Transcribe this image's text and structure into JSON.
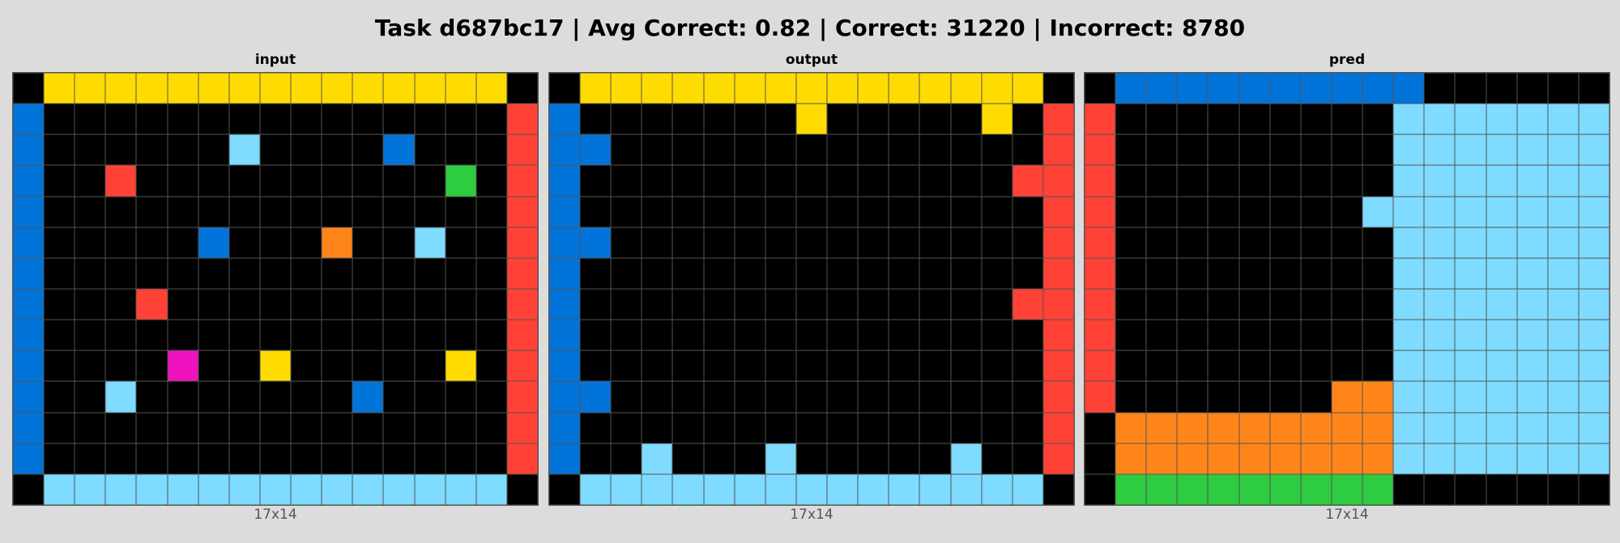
{
  "title": "Task d687bc17 | Avg Correct: 0.82 | Correct: 31220 | Incorrect: 8780",
  "palette": {
    "0": "#000000",
    "1": "#0074D9",
    "2": "#FF4136",
    "3": "#2ECC40",
    "4": "#FFDC00",
    "6": "#F012BE",
    "7": "#FF851B",
    "8": "#7FDBFF"
  },
  "chart_data": [
    {
      "type": "heatmap",
      "name": "input",
      "size_label": "17x14",
      "rows": [
        [
          0,
          4,
          4,
          4,
          4,
          4,
          4,
          4,
          4,
          4,
          4,
          4,
          4,
          4,
          4,
          4,
          0
        ],
        [
          1,
          0,
          0,
          0,
          0,
          0,
          0,
          0,
          0,
          0,
          0,
          0,
          0,
          0,
          0,
          0,
          2
        ],
        [
          1,
          0,
          0,
          0,
          0,
          0,
          0,
          8,
          0,
          0,
          0,
          0,
          1,
          0,
          0,
          0,
          2
        ],
        [
          1,
          0,
          0,
          2,
          0,
          0,
          0,
          0,
          0,
          0,
          0,
          0,
          0,
          0,
          3,
          0,
          2
        ],
        [
          1,
          0,
          0,
          0,
          0,
          0,
          0,
          0,
          0,
          0,
          0,
          0,
          0,
          0,
          0,
          0,
          2
        ],
        [
          1,
          0,
          0,
          0,
          0,
          0,
          1,
          0,
          0,
          0,
          7,
          0,
          0,
          8,
          0,
          0,
          2
        ],
        [
          1,
          0,
          0,
          0,
          0,
          0,
          0,
          0,
          0,
          0,
          0,
          0,
          0,
          0,
          0,
          0,
          2
        ],
        [
          1,
          0,
          0,
          0,
          2,
          0,
          0,
          0,
          0,
          0,
          0,
          0,
          0,
          0,
          0,
          0,
          2
        ],
        [
          1,
          0,
          0,
          0,
          0,
          0,
          0,
          0,
          0,
          0,
          0,
          0,
          0,
          0,
          0,
          0,
          2
        ],
        [
          1,
          0,
          0,
          0,
          0,
          6,
          0,
          0,
          4,
          0,
          0,
          0,
          0,
          0,
          4,
          0,
          2
        ],
        [
          1,
          0,
          0,
          8,
          0,
          0,
          0,
          0,
          0,
          0,
          0,
          1,
          0,
          0,
          0,
          0,
          2
        ],
        [
          1,
          0,
          0,
          0,
          0,
          0,
          0,
          0,
          0,
          0,
          0,
          0,
          0,
          0,
          0,
          0,
          2
        ],
        [
          1,
          0,
          0,
          0,
          0,
          0,
          0,
          0,
          0,
          0,
          0,
          0,
          0,
          0,
          0,
          0,
          2
        ],
        [
          0,
          8,
          8,
          8,
          8,
          8,
          8,
          8,
          8,
          8,
          8,
          8,
          8,
          8,
          8,
          8,
          0
        ]
      ]
    },
    {
      "type": "heatmap",
      "name": "output",
      "size_label": "17x14",
      "rows": [
        [
          0,
          4,
          4,
          4,
          4,
          4,
          4,
          4,
          4,
          4,
          4,
          4,
          4,
          4,
          4,
          4,
          0
        ],
        [
          1,
          0,
          0,
          0,
          0,
          0,
          0,
          0,
          4,
          0,
          0,
          0,
          0,
          0,
          4,
          0,
          2
        ],
        [
          1,
          1,
          0,
          0,
          0,
          0,
          0,
          0,
          0,
          0,
          0,
          0,
          0,
          0,
          0,
          0,
          2
        ],
        [
          1,
          0,
          0,
          0,
          0,
          0,
          0,
          0,
          0,
          0,
          0,
          0,
          0,
          0,
          0,
          2,
          2
        ],
        [
          1,
          0,
          0,
          0,
          0,
          0,
          0,
          0,
          0,
          0,
          0,
          0,
          0,
          0,
          0,
          0,
          2
        ],
        [
          1,
          1,
          0,
          0,
          0,
          0,
          0,
          0,
          0,
          0,
          0,
          0,
          0,
          0,
          0,
          0,
          2
        ],
        [
          1,
          0,
          0,
          0,
          0,
          0,
          0,
          0,
          0,
          0,
          0,
          0,
          0,
          0,
          0,
          0,
          2
        ],
        [
          1,
          0,
          0,
          0,
          0,
          0,
          0,
          0,
          0,
          0,
          0,
          0,
          0,
          0,
          0,
          2,
          2
        ],
        [
          1,
          0,
          0,
          0,
          0,
          0,
          0,
          0,
          0,
          0,
          0,
          0,
          0,
          0,
          0,
          0,
          2
        ],
        [
          1,
          0,
          0,
          0,
          0,
          0,
          0,
          0,
          0,
          0,
          0,
          0,
          0,
          0,
          0,
          0,
          2
        ],
        [
          1,
          1,
          0,
          0,
          0,
          0,
          0,
          0,
          0,
          0,
          0,
          0,
          0,
          0,
          0,
          0,
          2
        ],
        [
          1,
          0,
          0,
          0,
          0,
          0,
          0,
          0,
          0,
          0,
          0,
          0,
          0,
          0,
          0,
          0,
          2
        ],
        [
          1,
          0,
          0,
          8,
          0,
          0,
          0,
          8,
          0,
          0,
          0,
          0,
          0,
          8,
          0,
          0,
          2
        ],
        [
          0,
          8,
          8,
          8,
          8,
          8,
          8,
          8,
          8,
          8,
          8,
          8,
          8,
          8,
          8,
          8,
          0
        ]
      ]
    },
    {
      "type": "heatmap",
      "name": "pred",
      "size_label": "17x14",
      "rows": [
        [
          0,
          1,
          1,
          1,
          1,
          1,
          1,
          1,
          1,
          1,
          1,
          0,
          0,
          0,
          0,
          0,
          0
        ],
        [
          2,
          0,
          0,
          0,
          0,
          0,
          0,
          0,
          0,
          0,
          8,
          8,
          8,
          8,
          8,
          8,
          8
        ],
        [
          2,
          0,
          0,
          0,
          0,
          0,
          0,
          0,
          0,
          0,
          8,
          8,
          8,
          8,
          8,
          8,
          8
        ],
        [
          2,
          0,
          0,
          0,
          0,
          0,
          0,
          0,
          0,
          0,
          8,
          8,
          8,
          8,
          8,
          8,
          8
        ],
        [
          2,
          0,
          0,
          0,
          0,
          0,
          0,
          0,
          0,
          8,
          8,
          8,
          8,
          8,
          8,
          8,
          8
        ],
        [
          2,
          0,
          0,
          0,
          0,
          0,
          0,
          0,
          0,
          0,
          8,
          8,
          8,
          8,
          8,
          8,
          8
        ],
        [
          2,
          0,
          0,
          0,
          0,
          0,
          0,
          0,
          0,
          0,
          8,
          8,
          8,
          8,
          8,
          8,
          8
        ],
        [
          2,
          0,
          0,
          0,
          0,
          0,
          0,
          0,
          0,
          0,
          8,
          8,
          8,
          8,
          8,
          8,
          8
        ],
        [
          2,
          0,
          0,
          0,
          0,
          0,
          0,
          0,
          0,
          0,
          8,
          8,
          8,
          8,
          8,
          8,
          8
        ],
        [
          2,
          0,
          0,
          0,
          0,
          0,
          0,
          0,
          0,
          0,
          8,
          8,
          8,
          8,
          8,
          8,
          8
        ],
        [
          2,
          0,
          0,
          0,
          0,
          0,
          0,
          0,
          7,
          7,
          8,
          8,
          8,
          8,
          8,
          8,
          8
        ],
        [
          0,
          7,
          7,
          7,
          7,
          7,
          7,
          7,
          7,
          7,
          8,
          8,
          8,
          8,
          8,
          8,
          8
        ],
        [
          0,
          7,
          7,
          7,
          7,
          7,
          7,
          7,
          7,
          7,
          8,
          8,
          8,
          8,
          8,
          8,
          8
        ],
        [
          0,
          3,
          3,
          3,
          3,
          3,
          3,
          3,
          3,
          3,
          0,
          0,
          0,
          0,
          0,
          0,
          0
        ]
      ]
    }
  ]
}
